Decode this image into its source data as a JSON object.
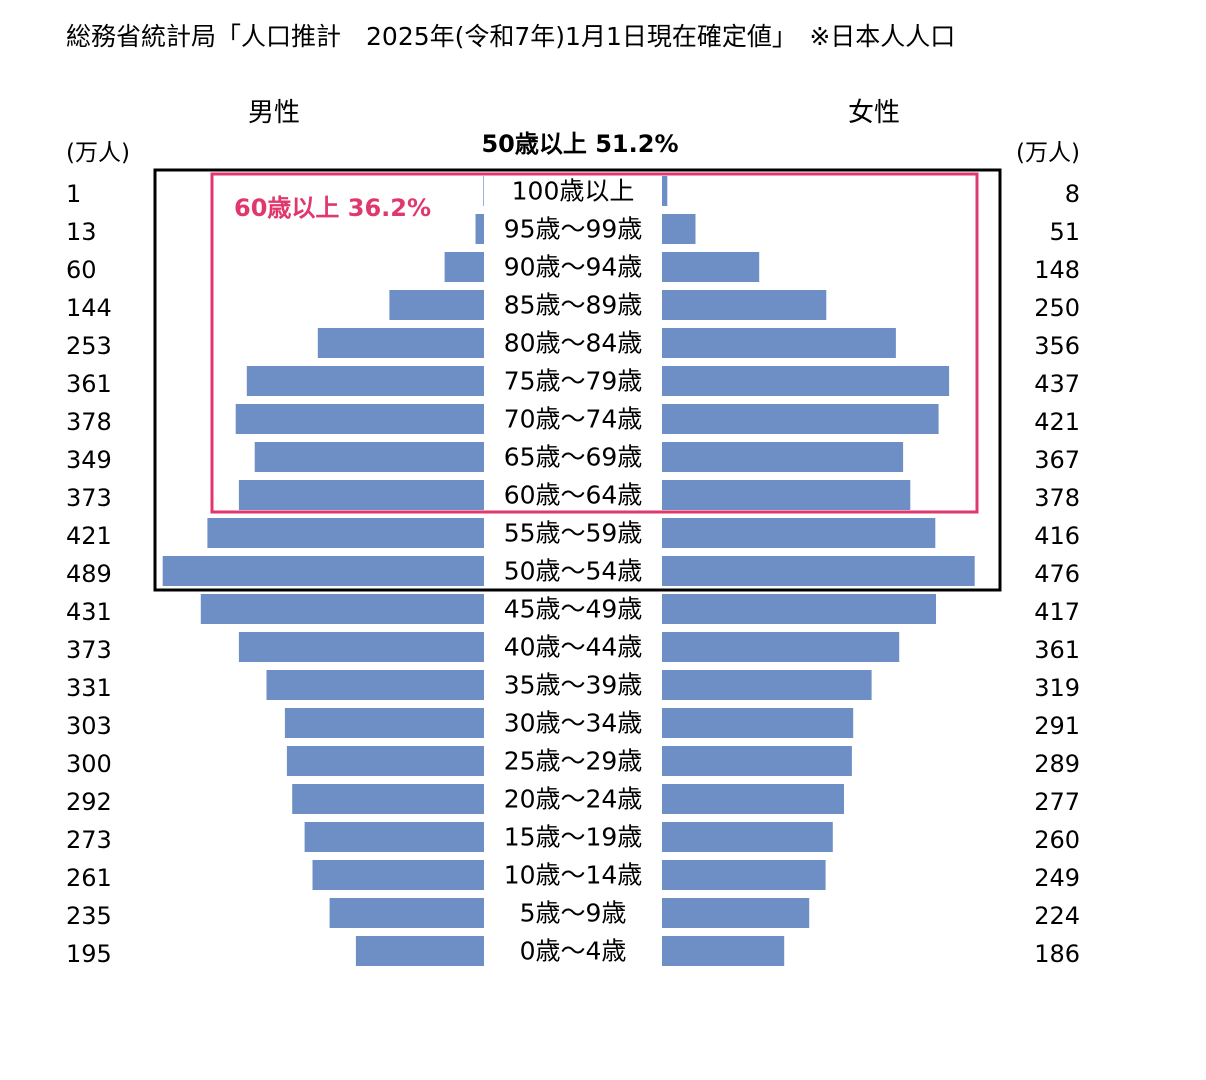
{
  "chart_data": {
    "type": "bar",
    "title": "総務省統計局「人口推計　2025年(令和7年)1月1日現在確定値」　※日本人人口",
    "left_label": "男性",
    "right_label": "女性",
    "unit_left": "(万人)",
    "unit_right": "(万人)",
    "categories": [
      "100歳以上",
      "95歳～99歳",
      "90歳～94歳",
      "85歳～89歳",
      "80歳～84歳",
      "75歳～79歳",
      "70歳～74歳",
      "65歳～69歳",
      "60歳～64歳",
      "55歳～59歳",
      "50歳～54歳",
      "45歳～49歳",
      "40歳～44歳",
      "35歳～39歳",
      "30歳～34歳",
      "25歳～29歳",
      "20歳～24歳",
      "15歳～19歳",
      "10歳～14歳",
      "5歳～9歳",
      "0歳～4歳"
    ],
    "series": [
      {
        "name": "男性",
        "values": [
          1,
          13,
          60,
          144,
          253,
          361,
          378,
          349,
          373,
          421,
          489,
          431,
          373,
          331,
          303,
          300,
          292,
          273,
          261,
          235,
          195
        ]
      },
      {
        "name": "女性",
        "values": [
          8,
          51,
          148,
          250,
          356,
          437,
          421,
          367,
          378,
          416,
          476,
          417,
          361,
          319,
          291,
          289,
          277,
          260,
          249,
          224,
          186
        ]
      }
    ],
    "bar_color": "#6e8fc6",
    "annotations": [
      {
        "text": "50歳以上 51.2%",
        "color": "#000000",
        "from_category": "100歳以上",
        "to_category": "50歳～54歳"
      },
      {
        "text": "60歳以上 36.2%",
        "color": "#e0386d",
        "from_category": "100歳以上",
        "to_category": "60歳～64歳"
      }
    ]
  }
}
